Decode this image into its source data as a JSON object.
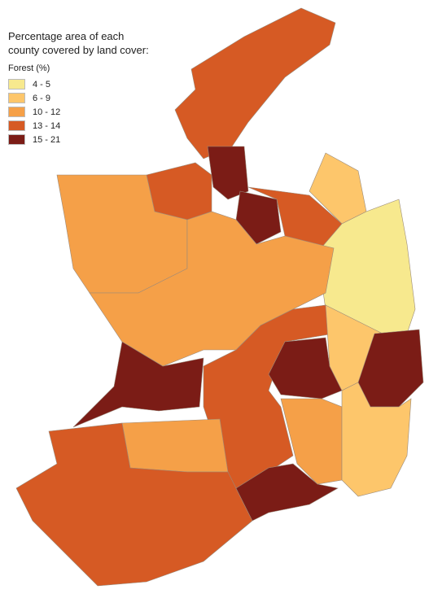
{
  "title": "Percentage area of each county covered by land cover:",
  "legend": {
    "title": "Forest (%)",
    "items": [
      {
        "label": "4 - 5",
        "color": "#f7e98e"
      },
      {
        "label": "6 - 9",
        "color": "#fdc66b"
      },
      {
        "label": "10 - 12",
        "color": "#f5a048"
      },
      {
        "label": "13 - 14",
        "color": "#d65a24"
      },
      {
        "label": "15 - 21",
        "color": "#7b1c16"
      }
    ]
  }
}
